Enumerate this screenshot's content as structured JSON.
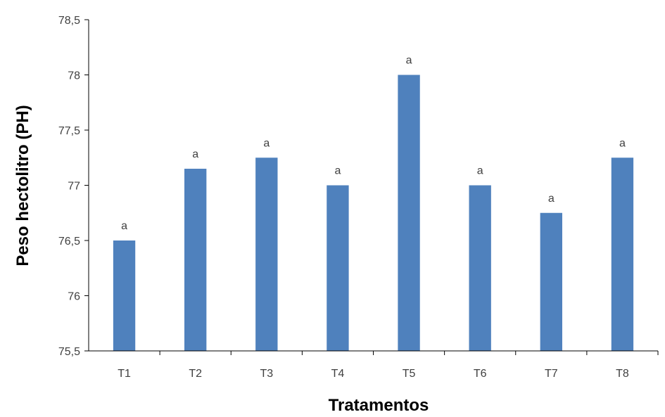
{
  "chart_data": {
    "type": "bar",
    "title": "",
    "xlabel": "Tratamentos",
    "ylabel": "Peso hectolitro (PH)",
    "categories": [
      "T1",
      "T2",
      "T3",
      "T4",
      "T5",
      "T6",
      "T7",
      "T8"
    ],
    "values": [
      76.5,
      77.15,
      77.25,
      77.0,
      78.0,
      77.0,
      76.75,
      77.25
    ],
    "data_labels": [
      "a",
      "a",
      "a",
      "a",
      "a",
      "a",
      "a",
      "a"
    ],
    "ylim": [
      75.5,
      78.5
    ],
    "yticks": [
      75.5,
      76,
      76.5,
      77,
      77.5,
      78,
      78.5
    ],
    "ytick_labels": [
      "75,5",
      "76",
      "76,5",
      "77",
      "77,5",
      "78",
      "78,5"
    ],
    "grid": false,
    "legend": "none",
    "bar_color": "#4f81bd"
  }
}
